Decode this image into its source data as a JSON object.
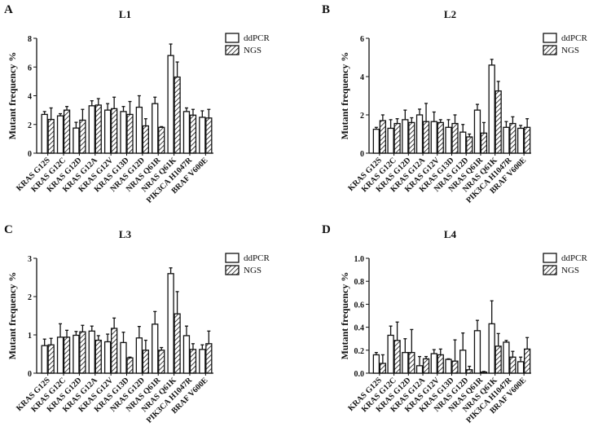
{
  "chart_data": [
    {
      "type": "bar",
      "letter": "A",
      "title": "L1",
      "ylabel": "Mutant frequency %",
      "ylim": [
        0,
        8
      ],
      "yticks": [
        0,
        2,
        4,
        6,
        8
      ],
      "categories": [
        "KRAS G12S",
        "KRAS G12C",
        "KRAS G12D",
        "KRAS G12A",
        "KRAS G12V",
        "KRAS G13D",
        "NRAS G12D",
        "NRAS Q61R",
        "NRAS Q61K",
        "PIK3CA H1047R",
        "BRAF V600E"
      ],
      "series": [
        {
          "name": "ddPCR",
          "values": [
            2.7,
            2.6,
            1.75,
            3.3,
            3.0,
            2.9,
            3.2,
            3.45,
            6.8,
            2.9,
            2.5
          ],
          "errors": [
            0.2,
            0.15,
            0.4,
            0.35,
            0.45,
            0.35,
            0.8,
            0.45,
            0.8,
            0.25,
            0.45
          ]
        },
        {
          "name": "NGS",
          "values": [
            2.35,
            3.0,
            2.3,
            3.35,
            3.1,
            2.7,
            1.9,
            1.8,
            5.3,
            2.65,
            2.45
          ],
          "errors": [
            0.8,
            0.25,
            0.75,
            0.45,
            0.8,
            0.9,
            0.5,
            0.05,
            1.05,
            0.4,
            0.6
          ]
        }
      ]
    },
    {
      "type": "bar",
      "letter": "B",
      "title": "L2",
      "ylabel": "Mutant frequency %",
      "ylim": [
        0,
        6
      ],
      "yticks": [
        0,
        2,
        4,
        6
      ],
      "categories": [
        "KRAS G12S",
        "KRAS G12C",
        "KRAS G12D",
        "KRAS G12A",
        "KRAS G12V",
        "KRAS G13D",
        "NRAS G12D",
        "NRAS Q61R",
        "NRAS Q61K",
        "PIK3CA H1047R",
        "BRAF V600E"
      ],
      "series": [
        {
          "name": "ddPCR",
          "values": [
            1.25,
            1.3,
            1.75,
            2.0,
            1.65,
            1.35,
            1.1,
            2.25,
            4.6,
            1.35,
            1.3
          ],
          "errors": [
            0.1,
            0.45,
            0.5,
            0.3,
            0.5,
            0.4,
            0.4,
            0.3,
            0.3,
            0.3,
            0.15
          ]
        },
        {
          "name": "NGS",
          "values": [
            1.7,
            1.55,
            1.6,
            1.65,
            1.6,
            1.55,
            0.85,
            1.05,
            3.25,
            1.55,
            1.35
          ],
          "errors": [
            0.3,
            0.25,
            0.25,
            0.95,
            0.15,
            0.45,
            0.15,
            0.55,
            0.5,
            0.35,
            0.45
          ]
        }
      ]
    },
    {
      "type": "bar",
      "letter": "C",
      "title": "L3",
      "ylabel": "Mutant frequency %",
      "ylim": [
        0,
        3
      ],
      "yticks": [
        0,
        1,
        2,
        3
      ],
      "categories": [
        "KRAS G12S",
        "KRAS G12C",
        "KRAS G12D",
        "KRAS G12A",
        "KRAS G12V",
        "KRAS G13D",
        "NRAS G12D",
        "NRAS Q61R",
        "NRAS Q61K",
        "PIK3CA H1047R",
        "BRAF V600E"
      ],
      "series": [
        {
          "name": "ddPCR",
          "values": [
            0.72,
            0.94,
            0.99,
            1.1,
            0.82,
            0.8,
            0.92,
            1.28,
            2.6,
            0.98,
            0.62
          ],
          "errors": [
            0.17,
            0.35,
            0.1,
            0.13,
            0.2,
            0.27,
            0.3,
            0.33,
            0.15,
            0.25,
            0.12
          ]
        },
        {
          "name": "NGS",
          "values": [
            0.74,
            0.94,
            1.08,
            0.86,
            1.17,
            0.4,
            0.6,
            0.6,
            1.55,
            0.62,
            0.77
          ],
          "errors": [
            0.17,
            0.18,
            0.17,
            0.12,
            0.27,
            0.02,
            0.26,
            0.07,
            0.58,
            0.15,
            0.33
          ]
        }
      ]
    },
    {
      "type": "bar",
      "letter": "D",
      "title": "L4",
      "ylabel": "Mutant frequency %",
      "ylim": [
        0,
        1
      ],
      "yticks": [
        "0.0",
        "0.2",
        "0.4",
        "0.6",
        "0.8",
        "1.0"
      ],
      "categories": [
        "KRAS G12S",
        "KRAS G12C",
        "KRAS G12D",
        "KRAS G12A",
        "KRAS G12V",
        "KRAS G13D",
        "NRAS G12D",
        "NRAS Q61R",
        "NRAS Q61K",
        "PIK3CA H1047R",
        "BRAF V600E"
      ],
      "series": [
        {
          "name": "ddPCR",
          "values": [
            0.16,
            0.33,
            0.18,
            0.065,
            0.17,
            0.12,
            0.2,
            0.37,
            0.43,
            0.27,
            0.1
          ],
          "errors": [
            0.02,
            0.08,
            0.12,
            0.08,
            0.035,
            0.005,
            0.15,
            0.09,
            0.2,
            0.015,
            0.04
          ]
        },
        {
          "name": "NGS",
          "values": [
            0.085,
            0.285,
            0.18,
            0.125,
            0.16,
            0.105,
            0.03,
            0.01,
            0.235,
            0.14,
            0.21
          ],
          "errors": [
            0.075,
            0.16,
            0.2,
            0.02,
            0.05,
            0.185,
            0.03,
            0.005,
            0.11,
            0.05,
            0.1
          ]
        }
      ]
    }
  ]
}
